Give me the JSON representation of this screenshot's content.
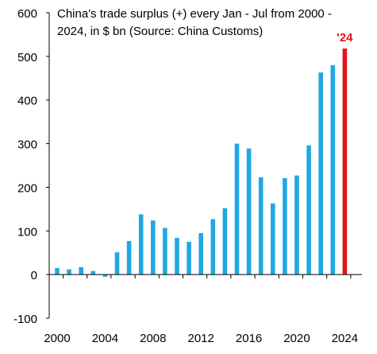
{
  "chart_data": {
    "type": "bar",
    "title_lines": [
      "China's trade surplus (+) every Jan - Jul from 2000 -",
      "2024, in $ bn (Source: China Customs)"
    ],
    "xlabel": "",
    "ylabel": "",
    "ylim": [
      -100,
      600
    ],
    "yticks": [
      -100,
      0,
      100,
      200,
      300,
      400,
      500,
      600
    ],
    "xticks": [
      2000,
      2004,
      2008,
      2012,
      2016,
      2020,
      2024
    ],
    "x": [
      2000,
      2001,
      2002,
      2003,
      2004,
      2005,
      2006,
      2007,
      2008,
      2009,
      2010,
      2011,
      2012,
      2013,
      2014,
      2015,
      2016,
      2017,
      2018,
      2019,
      2020,
      2021,
      2022,
      2023,
      2024
    ],
    "values": [
      15,
      12,
      17,
      8,
      -5,
      51,
      77,
      138,
      124,
      107,
      84,
      75,
      95,
      127,
      152,
      300,
      289,
      223,
      163,
      221,
      227,
      296,
      463,
      480,
      518
    ],
    "highlight": {
      "index": 24,
      "label": "'24",
      "color": "#e3151a"
    },
    "bar_color": "#1fa8e3",
    "grid": false
  }
}
